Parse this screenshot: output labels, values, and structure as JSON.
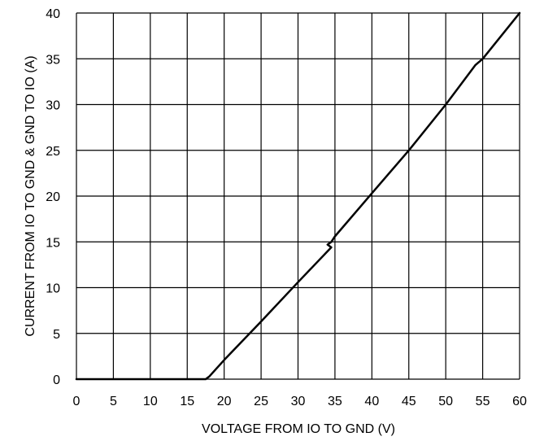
{
  "chart_data": {
    "type": "line",
    "title": "",
    "xlabel": "VOLTAGE FROM IO TO GND (V)",
    "ylabel": "CURRENT FROM IO TO GND & GND TO IO (A)",
    "xlim": [
      0,
      60
    ],
    "ylim": [
      0,
      40
    ],
    "x_ticks": [
      0,
      5,
      10,
      15,
      20,
      25,
      30,
      35,
      40,
      45,
      50,
      55,
      60
    ],
    "y_ticks": [
      0,
      5,
      10,
      15,
      20,
      25,
      30,
      35,
      40
    ],
    "grid": true,
    "legend": "none",
    "series": [
      {
        "color": "#000000",
        "x": [
          0,
          15,
          17.5,
          18,
          20,
          25,
          30,
          34.5,
          34,
          34.5,
          35,
          40,
          45,
          50,
          54,
          55,
          60
        ],
        "y": [
          0,
          0,
          0,
          0.3,
          2.1,
          6.3,
          10.6,
          14.4,
          14.7,
          15.0,
          15.6,
          20.3,
          25.0,
          30.0,
          34.3,
          35.0,
          40.0
        ]
      }
    ]
  }
}
